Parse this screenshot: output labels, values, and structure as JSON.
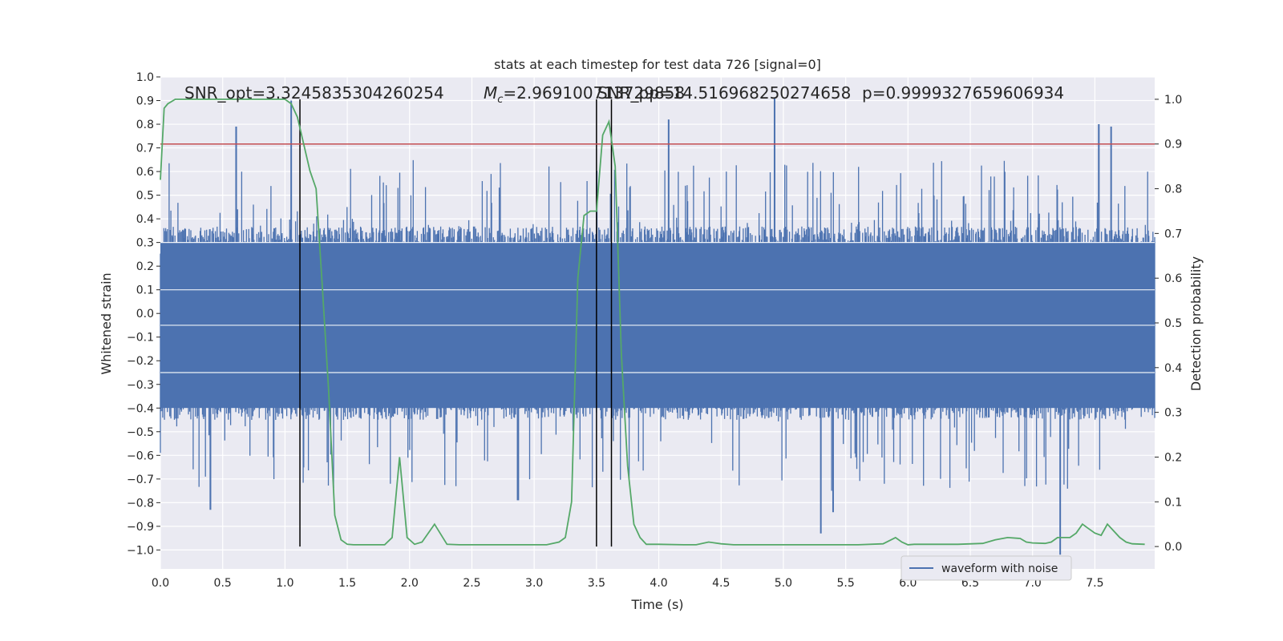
{
  "chart_data": {
    "type": "line",
    "title": "stats at each timestep for test data 726 [signal=0]",
    "xlabel": "Time (s)",
    "ylabel": "Whitened strain",
    "ylabel_right": "Detection probability",
    "xlim": [
      0.0,
      7.98
    ],
    "ylim": [
      -1.08,
      1.0
    ],
    "ylim_right": [
      -0.05,
      1.05
    ],
    "x_ticks": [
      "0.0",
      "0.5",
      "1.0",
      "1.5",
      "2.0",
      "2.5",
      "3.0",
      "3.5",
      "4.0",
      "4.5",
      "5.0",
      "5.5",
      "6.0",
      "6.5",
      "7.0",
      "7.5"
    ],
    "y_ticks": [
      "1.0",
      "0.9",
      "0.8",
      "0.7",
      "0.6",
      "0.5",
      "0.4",
      "0.3",
      "0.2",
      "0.1",
      "0.0",
      "−0.1",
      "−0.2",
      "−0.3",
      "−0.4",
      "−0.5",
      "−0.6",
      "−0.7",
      "−0.8",
      "−0.9",
      "−1.0"
    ],
    "y_right_ticks": [
      "1.0",
      "0.9",
      "0.8",
      "0.7",
      "0.6",
      "0.5",
      "0.4",
      "0.3",
      "0.2",
      "0.1",
      "0.0"
    ],
    "annotations": {
      "snr": "SNR_opt=3.3245835304260254",
      "mc_prefix": "M",
      "mc_sub": "c",
      "mc_value": "=2.969100713729858",
      "snr_pp": "SNR_pp=14.516968250274658",
      "p": "p=0.9999327659606934"
    },
    "legend": {
      "label": "waveform with noise",
      "position": "lower-right"
    },
    "threshold": {
      "value": 0.9,
      "axis": "right",
      "color": "#c44e52"
    },
    "vertical_lines": [
      1.12,
      3.5,
      3.62
    ],
    "colors": {
      "waveform": "#4c72b0",
      "probability": "#55a868",
      "threshold": "#c44e52",
      "vline": "#000000",
      "background": "#eaeaf2",
      "grid": "#ffffff"
    },
    "waveform": {
      "name": "waveform with noise",
      "description_envelope": {
        "typical_upper": 0.35,
        "typical_lower": -0.45,
        "peaks_upper": [
          [
            0.61,
            0.79
          ],
          [
            1.05,
            0.9
          ],
          [
            4.08,
            0.82
          ],
          [
            4.93,
            0.91
          ],
          [
            7.53,
            0.8
          ],
          [
            7.63,
            0.79
          ]
        ],
        "peaks_lower": [
          [
            0.4,
            -0.83
          ],
          [
            5.3,
            -0.93
          ],
          [
            5.4,
            -0.84
          ],
          [
            7.22,
            -1.02
          ],
          [
            2.87,
            -0.79
          ]
        ]
      }
    },
    "probability": {
      "name": "Detection probability",
      "x": [
        0.0,
        0.03,
        0.06,
        0.12,
        0.2,
        0.4,
        0.6,
        0.8,
        1.0,
        1.05,
        1.1,
        1.15,
        1.2,
        1.25,
        1.3,
        1.35,
        1.4,
        1.45,
        1.5,
        1.55,
        1.6,
        1.7,
        1.8,
        1.86,
        1.92,
        1.98,
        2.04,
        2.1,
        2.2,
        2.3,
        2.4,
        2.6,
        2.8,
        3.0,
        3.1,
        3.2,
        3.25,
        3.3,
        3.35,
        3.4,
        3.45,
        3.5,
        3.55,
        3.6,
        3.65,
        3.7,
        3.75,
        3.8,
        3.85,
        3.9,
        3.95,
        4.0,
        4.2,
        4.3,
        4.4,
        4.5,
        4.6,
        4.8,
        5.0,
        5.2,
        5.4,
        5.6,
        5.8,
        5.9,
        5.95,
        6.0,
        6.05,
        6.2,
        6.4,
        6.6,
        6.7,
        6.8,
        6.9,
        6.95,
        7.0,
        7.1,
        7.15,
        7.2,
        7.25,
        7.3,
        7.35,
        7.4,
        7.45,
        7.5,
        7.55,
        7.6,
        7.7,
        7.75,
        7.8,
        7.9
      ],
      "values": [
        0.82,
        0.98,
        0.99,
        1.0,
        1.0,
        1.0,
        1.0,
        1.0,
        1.0,
        0.99,
        0.96,
        0.9,
        0.84,
        0.8,
        0.58,
        0.35,
        0.07,
        0.015,
        0.005,
        0.004,
        0.004,
        0.004,
        0.004,
        0.02,
        0.2,
        0.02,
        0.005,
        0.01,
        0.05,
        0.005,
        0.004,
        0.004,
        0.004,
        0.004,
        0.004,
        0.01,
        0.02,
        0.1,
        0.6,
        0.74,
        0.75,
        0.75,
        0.92,
        0.95,
        0.85,
        0.43,
        0.18,
        0.05,
        0.02,
        0.005,
        0.005,
        0.005,
        0.004,
        0.004,
        0.01,
        0.006,
        0.004,
        0.004,
        0.004,
        0.004,
        0.004,
        0.004,
        0.006,
        0.02,
        0.01,
        0.004,
        0.005,
        0.005,
        0.005,
        0.007,
        0.015,
        0.02,
        0.018,
        0.01,
        0.008,
        0.007,
        0.01,
        0.02,
        0.02,
        0.02,
        0.03,
        0.05,
        0.04,
        0.03,
        0.025,
        0.05,
        0.02,
        0.01,
        0.006,
        0.005
      ]
    }
  }
}
